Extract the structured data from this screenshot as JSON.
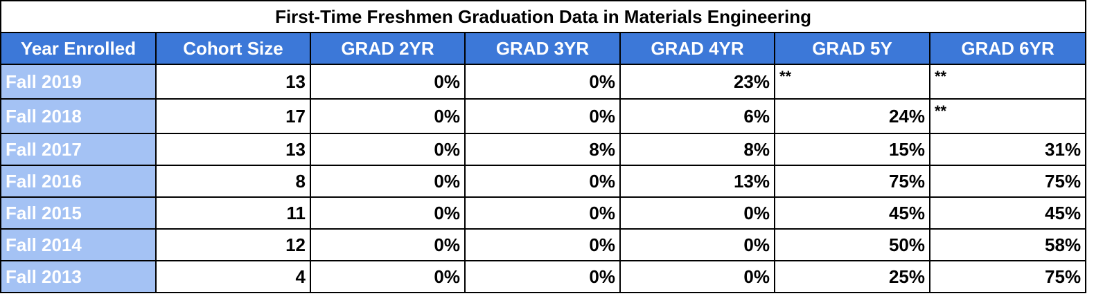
{
  "table": {
    "title": "First-Time Freshmen Graduation Data in Materials Engineering",
    "headers": [
      "Year Enrolled",
      "Cohort Size",
      "GRAD 2YR",
      "GRAD 3YR",
      "GRAD 4YR",
      "GRAD 5Y",
      "GRAD 6YR"
    ],
    "rows": [
      [
        "Fall 2019",
        "13",
        "0%",
        "0%",
        "23%",
        "**",
        "**"
      ],
      [
        "Fall 2018",
        "17",
        "0%",
        "0%",
        "6%",
        "24%",
        "**"
      ],
      [
        "Fall 2017",
        "13",
        "0%",
        "8%",
        "8%",
        "15%",
        "31%"
      ],
      [
        "Fall 2016",
        "8",
        "0%",
        "0%",
        "13%",
        "75%",
        "75%"
      ],
      [
        "Fall 2015",
        "11",
        "0%",
        "0%",
        "0%",
        "45%",
        "45%"
      ],
      [
        "Fall 2014",
        "12",
        "0%",
        "0%",
        "0%",
        "50%",
        "58%"
      ],
      [
        "Fall 2013",
        "4",
        "0%",
        "0%",
        "0%",
        "25%",
        "75%"
      ]
    ]
  }
}
